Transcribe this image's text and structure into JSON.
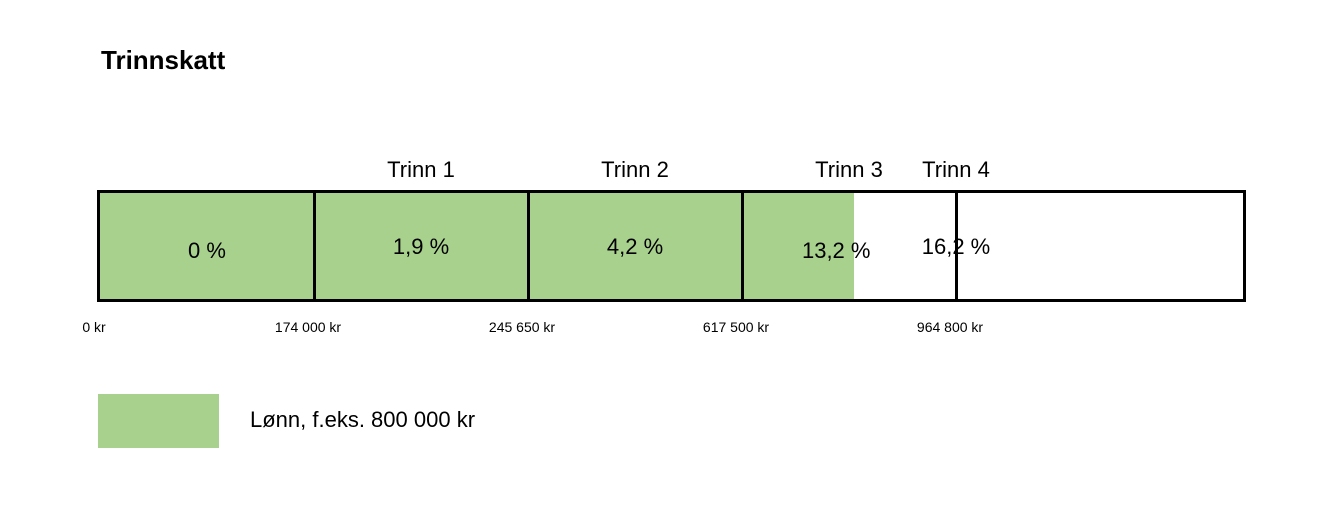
{
  "title": "Trinnskatt",
  "colors": {
    "fill": "#a9d18e",
    "border": "#000000",
    "background": "#ffffff"
  },
  "chart_data": {
    "type": "bar",
    "title": "Trinnskatt",
    "axis_max": 1150000,
    "brackets": [
      {
        "label": "",
        "rate": "0 %",
        "from": 0,
        "to": 174000
      },
      {
        "label": "Trinn 1",
        "rate": "1,9 %",
        "from": 174000,
        "to": 245650
      },
      {
        "label": "Trinn 2",
        "rate": "4,2 %",
        "from": 245650,
        "to": 617500
      },
      {
        "label": "Trinn 3",
        "rate": "13,2 %",
        "from": 617500,
        "to": 964800
      },
      {
        "label": "Trinn 4",
        "rate": "16,2 %",
        "from": 964800,
        "to": 1150000
      }
    ],
    "thresholds": [
      {
        "value": 0,
        "label": "0 kr"
      },
      {
        "value": 174000,
        "label": "174 000 kr"
      },
      {
        "value": 245650,
        "label": "245 650 kr"
      },
      {
        "value": 617500,
        "label": "617 500 kr"
      },
      {
        "value": 964800,
        "label": "964 800 kr"
      }
    ],
    "salary": 800000,
    "legend": {
      "label": "Lønn, f.eks. 800 000 kr"
    }
  }
}
